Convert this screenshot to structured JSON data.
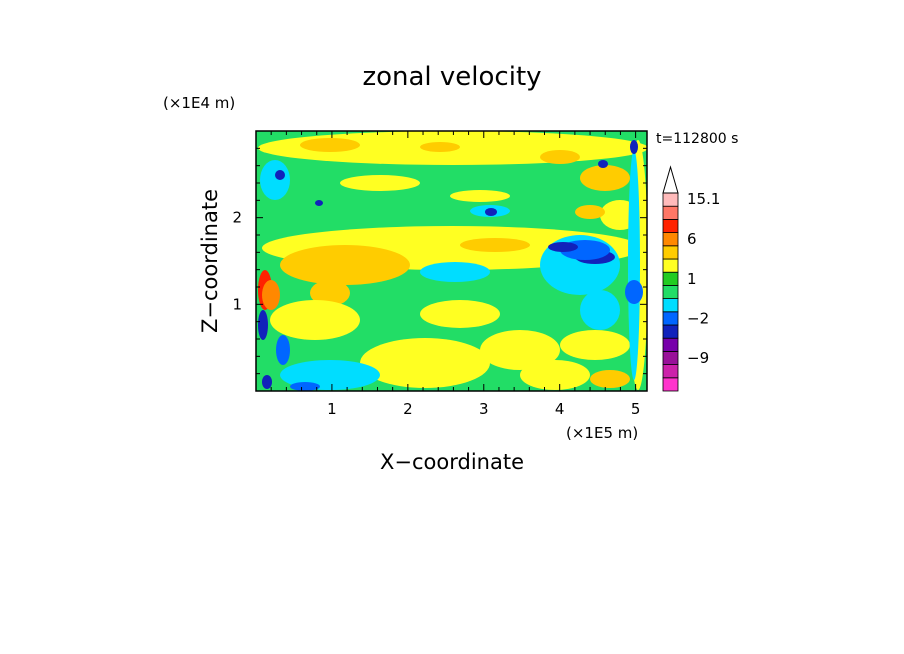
{
  "chart_data": {
    "type": "heatmap",
    "title": "zonal velocity",
    "xlabel": "X−coordinate",
    "ylabel": "Z−coordinate",
    "x_unit": "(×1E5 m)",
    "y_unit": "(×1E4 m)",
    "time_label": "t=112800 s",
    "xlim": [
      0,
      5.15
    ],
    "ylim": [
      0,
      3.0
    ],
    "x_ticks": [
      "1",
      "2",
      "3",
      "4",
      "5"
    ],
    "y_ticks": [
      "1",
      "2"
    ],
    "x_tick_values": [
      1,
      2,
      3,
      4,
      5
    ],
    "y_tick_values": [
      1,
      2
    ],
    "colorbar": {
      "labels": [
        "15.1",
        "6",
        "1",
        "−2",
        "−9"
      ],
      "label_values": [
        15.1,
        6,
        1,
        -2,
        -9
      ],
      "levels": [
        -15,
        -12,
        -9,
        -6,
        -3,
        -2,
        -1,
        0,
        1,
        2,
        3,
        6,
        9,
        12,
        15.1
      ],
      "colors": [
        "#ff33cc",
        "#cc22aa",
        "#991199",
        "#7700aa",
        "#1122bb",
        "#0066ff",
        "#00ddff",
        "#22dd66",
        "#22cc22",
        "#ffff22",
        "#ffcc00",
        "#ff8800",
        "#ff2200",
        "#ff7766",
        "#ffbbbb"
      ],
      "extend": "max"
    }
  }
}
